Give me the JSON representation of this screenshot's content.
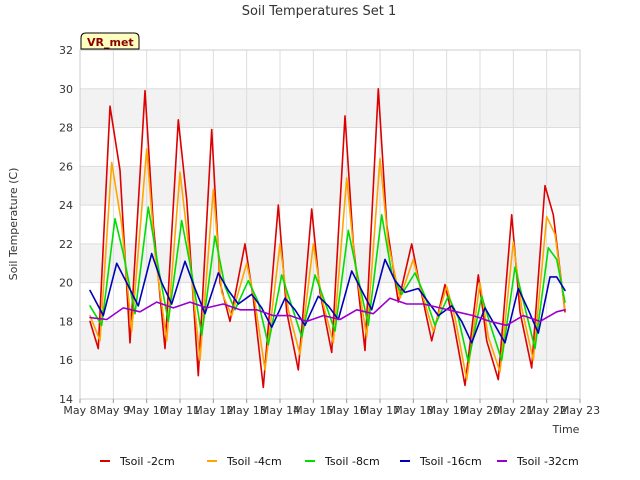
{
  "chart_data": {
    "type": "line",
    "title": "Soil Temperatures Set 1",
    "xlabel": "Time",
    "ylabel": "Soil Temperature (C)",
    "site_badge": "VR_met",
    "ylim": [
      14,
      32
    ],
    "yticks": [
      14,
      16,
      18,
      20,
      22,
      24,
      26,
      28,
      30,
      32
    ],
    "xlim": [
      0,
      15
    ],
    "x_tick_positions": [
      0,
      1,
      2,
      3,
      4,
      5,
      6,
      7,
      8,
      9,
      10,
      11,
      12,
      13,
      14,
      15
    ],
    "x_tick_labels": [
      "May 8",
      "May 9",
      "May 10",
      "May 11",
      "May 12",
      "May 13",
      "May 14",
      "May 15",
      "May 16",
      "May 17",
      "May 18",
      "May 19",
      "May 20",
      "May 21",
      "May 22",
      "May 23"
    ],
    "x_unit": "days since May 8",
    "grid": true,
    "banded_background": true,
    "legend_position": "bottom",
    "series": [
      {
        "name": "Tsoil -2cm",
        "color": "#dd0000",
        "x": [
          0.3,
          0.55,
          0.9,
          1.2,
          1.5,
          1.95,
          2.2,
          2.55,
          2.95,
          3.2,
          3.55,
          3.95,
          4.2,
          4.5,
          4.95,
          5.2,
          5.5,
          5.95,
          6.2,
          6.55,
          6.95,
          7.2,
          7.55,
          7.95,
          8.2,
          8.55,
          8.95,
          9.2,
          9.55,
          9.95,
          10.2,
          10.55,
          10.95,
          11.2,
          11.55,
          11.95,
          12.2,
          12.55,
          12.95,
          13.2,
          13.55,
          13.95,
          14.2,
          14.55
        ],
        "values": [
          18.0,
          16.6,
          29.1,
          25.8,
          16.9,
          29.9,
          23.0,
          16.6,
          28.4,
          24.3,
          15.2,
          27.9,
          20.0,
          18.0,
          22.0,
          19.2,
          14.6,
          24.0,
          18.5,
          15.5,
          23.8,
          19.5,
          16.4,
          28.6,
          22.0,
          16.5,
          30.0,
          23.0,
          19.0,
          22.0,
          19.8,
          17.0,
          19.9,
          18.0,
          14.7,
          20.4,
          17.0,
          15.0,
          23.5,
          18.5,
          15.6,
          25.0,
          23.5,
          18.5
        ]
      },
      {
        "name": "Tsoil -4cm",
        "color": "#ffa500",
        "x": [
          0.3,
          0.6,
          0.95,
          1.25,
          1.55,
          2.0,
          2.25,
          2.6,
          3.0,
          3.25,
          3.6,
          4.0,
          4.25,
          4.55,
          5.0,
          5.25,
          5.55,
          6.0,
          6.25,
          6.6,
          7.0,
          7.25,
          7.6,
          8.0,
          8.25,
          8.6,
          9.0,
          9.25,
          9.6,
          10.0,
          10.25,
          10.6,
          11.0,
          11.25,
          11.6,
          12.0,
          12.25,
          12.6,
          13.0,
          13.25,
          13.6,
          14.0,
          14.25,
          14.55
        ],
        "values": [
          18.3,
          17.0,
          26.2,
          23.0,
          17.5,
          26.9,
          21.5,
          17.0,
          25.7,
          22.0,
          16.0,
          24.8,
          19.5,
          18.3,
          21.0,
          19.0,
          15.5,
          22.0,
          18.6,
          16.3,
          22.0,
          19.2,
          16.9,
          25.4,
          21.0,
          17.2,
          26.4,
          22.0,
          19.2,
          21.2,
          19.5,
          17.5,
          19.8,
          18.2,
          15.0,
          20.0,
          17.2,
          15.4,
          22.1,
          18.7,
          16.0,
          23.4,
          22.5,
          18.6
        ]
      },
      {
        "name": "Tsoil -8cm",
        "color": "#00dd00",
        "x": [
          0.3,
          0.65,
          1.05,
          1.3,
          1.65,
          2.05,
          2.35,
          2.65,
          3.05,
          3.35,
          3.65,
          4.05,
          4.35,
          4.65,
          5.05,
          5.35,
          5.65,
          6.05,
          6.35,
          6.65,
          7.05,
          7.35,
          7.65,
          8.05,
          8.35,
          8.65,
          9.05,
          9.35,
          9.65,
          10.05,
          10.35,
          10.65,
          11.05,
          11.35,
          11.65,
          12.05,
          12.35,
          12.65,
          13.05,
          13.35,
          13.65,
          14.05,
          14.3,
          14.55
        ],
        "values": [
          18.8,
          17.8,
          23.3,
          21.5,
          18.4,
          23.9,
          20.8,
          18.0,
          23.2,
          20.5,
          17.3,
          22.4,
          19.8,
          18.6,
          20.1,
          19.0,
          16.8,
          20.4,
          18.8,
          17.2,
          20.4,
          19.0,
          17.5,
          22.7,
          20.2,
          17.8,
          23.5,
          20.5,
          19.4,
          20.5,
          19.3,
          17.8,
          19.3,
          18.2,
          15.9,
          19.3,
          17.6,
          16.0,
          20.8,
          18.7,
          16.6,
          21.8,
          21.2,
          19.0
        ]
      },
      {
        "name": "Tsoil -16cm",
        "color": "#0000bb",
        "x": [
          0.3,
          0.7,
          1.1,
          1.4,
          1.75,
          2.15,
          2.45,
          2.75,
          3.15,
          3.45,
          3.75,
          4.15,
          4.45,
          4.75,
          5.15,
          5.45,
          5.75,
          6.15,
          6.45,
          6.75,
          7.15,
          7.45,
          7.75,
          8.15,
          8.45,
          8.75,
          9.15,
          9.45,
          9.75,
          10.15,
          10.45,
          10.75,
          11.15,
          11.45,
          11.75,
          12.15,
          12.45,
          12.75,
          13.15,
          13.45,
          13.75,
          14.1,
          14.3,
          14.55
        ],
        "values": [
          19.6,
          18.3,
          21.0,
          20.0,
          18.8,
          21.5,
          20.0,
          18.9,
          21.1,
          19.7,
          18.4,
          20.5,
          19.6,
          18.9,
          19.4,
          18.7,
          17.7,
          19.2,
          18.6,
          17.8,
          19.3,
          18.8,
          18.1,
          20.6,
          19.6,
          18.6,
          21.2,
          20.1,
          19.5,
          19.7,
          19.0,
          18.3,
          18.8,
          18.0,
          16.9,
          18.7,
          17.8,
          16.9,
          19.7,
          18.6,
          17.4,
          20.3,
          20.3,
          19.6
        ]
      },
      {
        "name": "Tsoil -32cm",
        "color": "#9900cc",
        "x": [
          0.3,
          0.8,
          1.3,
          1.8,
          2.3,
          2.8,
          3.3,
          3.8,
          4.3,
          4.8,
          5.3,
          5.8,
          6.3,
          6.8,
          7.3,
          7.8,
          8.3,
          8.8,
          9.3,
          9.8,
          10.3,
          10.8,
          11.3,
          11.8,
          12.3,
          12.8,
          13.3,
          13.8,
          14.3,
          14.55
        ],
        "values": [
          18.2,
          18.1,
          18.7,
          18.5,
          19.0,
          18.7,
          19.0,
          18.7,
          18.9,
          18.6,
          18.6,
          18.3,
          18.3,
          18.0,
          18.3,
          18.1,
          18.6,
          18.4,
          19.2,
          18.9,
          18.9,
          18.7,
          18.5,
          18.3,
          18.0,
          17.8,
          18.3,
          18.0,
          18.5,
          18.6
        ]
      }
    ]
  }
}
